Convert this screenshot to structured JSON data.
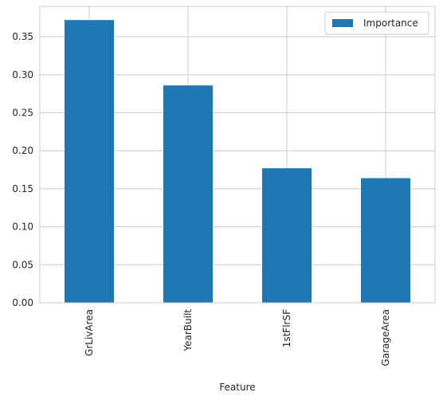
{
  "chart_data": {
    "type": "bar",
    "categories": [
      "GrLivArea",
      "YearBuilt",
      "1stFlrSF",
      "GarageArea"
    ],
    "series": [
      {
        "name": "Importance",
        "values": [
          0.372,
          0.286,
          0.177,
          0.164
        ]
      }
    ],
    "title": "",
    "xlabel": "Feature",
    "ylabel": "",
    "ylim": [
      0,
      0.39
    ],
    "yticks": [
      "0.00",
      "0.05",
      "0.10",
      "0.15",
      "0.20",
      "0.25",
      "0.30",
      "0.35"
    ],
    "grid": true,
    "legend_position": "top-right",
    "colors": {
      "bar": "#1f77b4",
      "grid": "#cccccc",
      "axes_edge": "#cccccc",
      "text": "#262626"
    }
  }
}
